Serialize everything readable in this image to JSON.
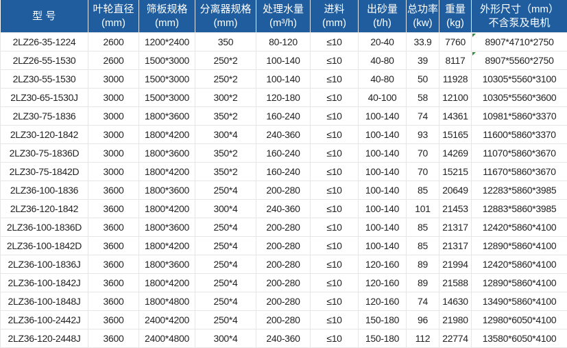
{
  "header": [
    [
      "型 号"
    ],
    [
      "叶轮直径",
      "(mm)"
    ],
    [
      "筛板规格",
      "(mm)"
    ],
    [
      "分离器规格",
      "(mm)"
    ],
    [
      "处理水量",
      "(m³/h)"
    ],
    [
      "进料",
      "(mm)"
    ],
    [
      "出砂量",
      "(t/h)"
    ],
    [
      "总功率",
      "(kw)"
    ],
    [
      "重量",
      "(kg)"
    ],
    [
      "外形尺寸（mm）",
      "不含泵及电机"
    ]
  ],
  "rows": [
    [
      "2LZ26-35-1224",
      "2600",
      "1200*2400",
      "350",
      "80-120",
      "≤10",
      "20-40",
      "33.9",
      "7760",
      "8907*4710*2750"
    ],
    [
      "2LZ26-55-1530",
      "2600",
      "1500*3000",
      "250*2",
      "100-140",
      "≤10",
      "40-80",
      "39",
      "8117",
      "8907*5560*2750"
    ],
    [
      "2LZ30-55-1530",
      "3000",
      "1500*3000",
      "250*2",
      "100-140",
      "≤10",
      "40-80",
      "50",
      "11928",
      "10305*5560*3100"
    ],
    [
      "2LZ30-65-1530J",
      "3000",
      "1500*3000",
      "300*2",
      "120-180",
      "≤10",
      "40-100",
      "58",
      "12100",
      "10305*5560*3600"
    ],
    [
      "2LZ30-75-1836",
      "3000",
      "1800*3600",
      "350*2",
      "160-240",
      "≤10",
      "100-140",
      "74",
      "14361",
      "10981*5860*3370"
    ],
    [
      "2LZ30-120-1842",
      "3000",
      "1800*4200",
      "300*4",
      "240-360",
      "≤10",
      "100-140",
      "93",
      "15165",
      "11600*5860*3370"
    ],
    [
      "2LZ30-75-1836D",
      "3000",
      "1800*3600",
      "350*2",
      "160-240",
      "≤10",
      "100-140",
      "70",
      "14269",
      "11070*5860*3670"
    ],
    [
      "2LZ30-75-1842D",
      "3000",
      "1800*4200",
      "350*2",
      "160-240",
      "≤10",
      "100-140",
      "70",
      "15215",
      "11670*5860*3670"
    ],
    [
      "2LZ36-100-1836",
      "3600",
      "1800*3600",
      "250*4",
      "200-280",
      "≤10",
      "100-140",
      "85",
      "20649",
      "12283*5860*3985"
    ],
    [
      "2LZ36-120-1842",
      "3600",
      "1800*4200",
      "300*4",
      "240-360",
      "≤10",
      "100-140",
      "101",
      "21453",
      "12883*5860*3985"
    ],
    [
      "2LZ36-100-1836D",
      "3600",
      "1800*3600",
      "250*4",
      "200-280",
      "≤10",
      "100-140",
      "85",
      "21317",
      "12420*5860*4100"
    ],
    [
      "2LZ36-100-1842D",
      "3600",
      "1800*4200",
      "250*4",
      "200-280",
      "≤10",
      "100-140",
      "85",
      "21317",
      "12890*5860*4100"
    ],
    [
      "2LZ36-100-1836J",
      "3600",
      "1800*3600",
      "250*4",
      "200-280",
      "≤10",
      "120-160",
      "89",
      "21994",
      "12420*5860*4100"
    ],
    [
      "2LZ36-100-1842J",
      "3600",
      "1800*4200",
      "250*4",
      "200-280",
      "≤10",
      "120-160",
      "89",
      "21588",
      "12890*5860*4100"
    ],
    [
      "2LZ36-100-1848J",
      "3600",
      "1800*4800",
      "250*4",
      "200-280",
      "≤10",
      "120-160",
      "74",
      "14630",
      "13490*5860*4100"
    ],
    [
      "2LZ36-100-2442J",
      "3600",
      "2400*4200",
      "250*4",
      "200-280",
      "≤10",
      "150-180",
      "96",
      "21980",
      "12980*6050*4100"
    ],
    [
      "2LZ36-120-2448J",
      "3600",
      "2400*4800",
      "300*4",
      "240-360",
      "≤10",
      "150-180",
      "112",
      "22774",
      "13580*6050*4100"
    ]
  ],
  "colors": {
    "header_bg": "#1f5d9e",
    "header_text": "#ffffff",
    "cell_marker": "#2e8b3a"
  }
}
